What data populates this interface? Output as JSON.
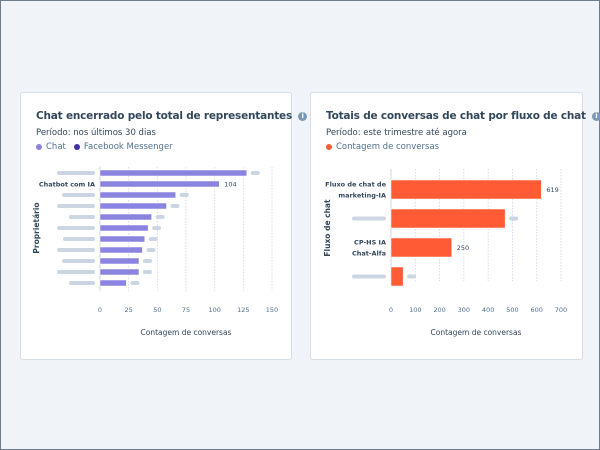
{
  "charts": [
    {
      "title": "Chat encerrado pelo total de representantes",
      "info_icon": "info-icon",
      "period": "Período: nos últimos 30 dias",
      "legend": [
        {
          "label": "Chat",
          "color": "#8b83e0"
        },
        {
          "label": "Facebook Messenger",
          "color": "#3e32a8"
        }
      ]
    },
    {
      "title": "Totais de conversas de chat por fluxo de chat",
      "info_icon": "info-icon",
      "period": "Período: este trimestre até agora",
      "legend": [
        {
          "label": "Contagem de conversas",
          "color": "#ff5c35"
        }
      ]
    }
  ],
  "chart_data": [
    {
      "type": "bar",
      "orientation": "horizontal",
      "xlabel": "Contagem de conversas",
      "ylabel": "Proprietário",
      "xlim": [
        0,
        150
      ],
      "xticks": [
        0,
        25,
        50,
        75,
        100,
        125,
        150
      ],
      "categories": [
        "",
        "Chatbot com IA",
        "",
        "",
        "",
        "",
        "",
        "",
        "",
        "",
        ""
      ],
      "series": [
        {
          "name": "Chat",
          "color": "#8b83e0",
          "values": [
            128,
            104,
            66,
            58,
            45,
            42,
            39,
            37,
            34,
            34,
            23
          ]
        }
      ],
      "data_labels": [
        "",
        "104",
        "",
        "",
        "",
        "",
        "",
        "",
        "",
        "",
        ""
      ]
    },
    {
      "type": "bar",
      "orientation": "horizontal",
      "xlabel": "Contagem de conversas",
      "ylabel": "Fluxo de chat",
      "xlim": [
        0,
        700
      ],
      "xticks": [
        0,
        100,
        200,
        300,
        400,
        500,
        600,
        700
      ],
      "categories": [
        [
          "Fluxo de chat de",
          "marketing-IA"
        ],
        [
          ""
        ],
        [
          "CP-HS IA",
          "Chat-Alfa"
        ],
        [
          ""
        ]
      ],
      "series": [
        {
          "name": "Contagem de conversas",
          "color": "#ff5c35",
          "values": [
            619,
            470,
            250,
            50
          ]
        }
      ],
      "data_labels": [
        "619",
        "",
        "250",
        ""
      ]
    }
  ]
}
